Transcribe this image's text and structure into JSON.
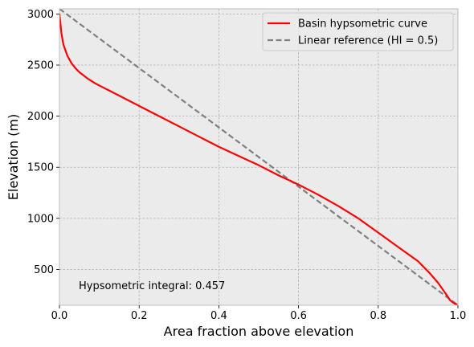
{
  "chart_data": {
    "type": "line",
    "xlabel": "Area fraction above elevation",
    "ylabel": "Elevation (m)",
    "xlim": [
      0.0,
      1.0
    ],
    "ylim": [
      150,
      3050
    ],
    "x_ticks": [
      "0.0",
      "0.2",
      "0.4",
      "0.6",
      "0.8",
      "1.0"
    ],
    "y_ticks": [
      "500",
      "1000",
      "1500",
      "2000",
      "2500",
      "3000"
    ],
    "x_tick_values": [
      0.0,
      0.2,
      0.4,
      0.6,
      0.8,
      1.0
    ],
    "y_tick_values": [
      500,
      1000,
      1500,
      2000,
      2500,
      3000
    ],
    "grid": true,
    "legend_position": "top-right",
    "series": [
      {
        "name": "Basin hypsometric curve",
        "color": "#ff0000",
        "style": "solid",
        "x": [
          0.0,
          0.005,
          0.01,
          0.02,
          0.03,
          0.04,
          0.05,
          0.07,
          0.09,
          0.12,
          0.15,
          0.2,
          0.25,
          0.3,
          0.35,
          0.4,
          0.45,
          0.5,
          0.55,
          0.6,
          0.65,
          0.7,
          0.75,
          0.8,
          0.85,
          0.9,
          0.93,
          0.95,
          0.97,
          0.98,
          0.99,
          1.0
        ],
        "y": [
          3000,
          2810,
          2700,
          2590,
          2520,
          2470,
          2430,
          2370,
          2320,
          2260,
          2200,
          2100,
          2000,
          1900,
          1800,
          1700,
          1610,
          1520,
          1420,
          1330,
          1230,
          1120,
          1000,
          860,
          720,
          580,
          460,
          370,
          260,
          200,
          170,
          150
        ]
      },
      {
        "name": "Linear reference (HI = 0.5)",
        "color": "#808080",
        "style": "dashed",
        "x": [
          0.0,
          1.0
        ],
        "y": [
          3050,
          150
        ]
      }
    ],
    "annotations": [
      {
        "text": "Hypsometric integral: 0.457",
        "x": 0.05,
        "y": 320
      }
    ]
  },
  "colors": {
    "plot_background": "#ebebeb",
    "grid": "#b0b0b0",
    "spine": "#bcbcbc"
  }
}
